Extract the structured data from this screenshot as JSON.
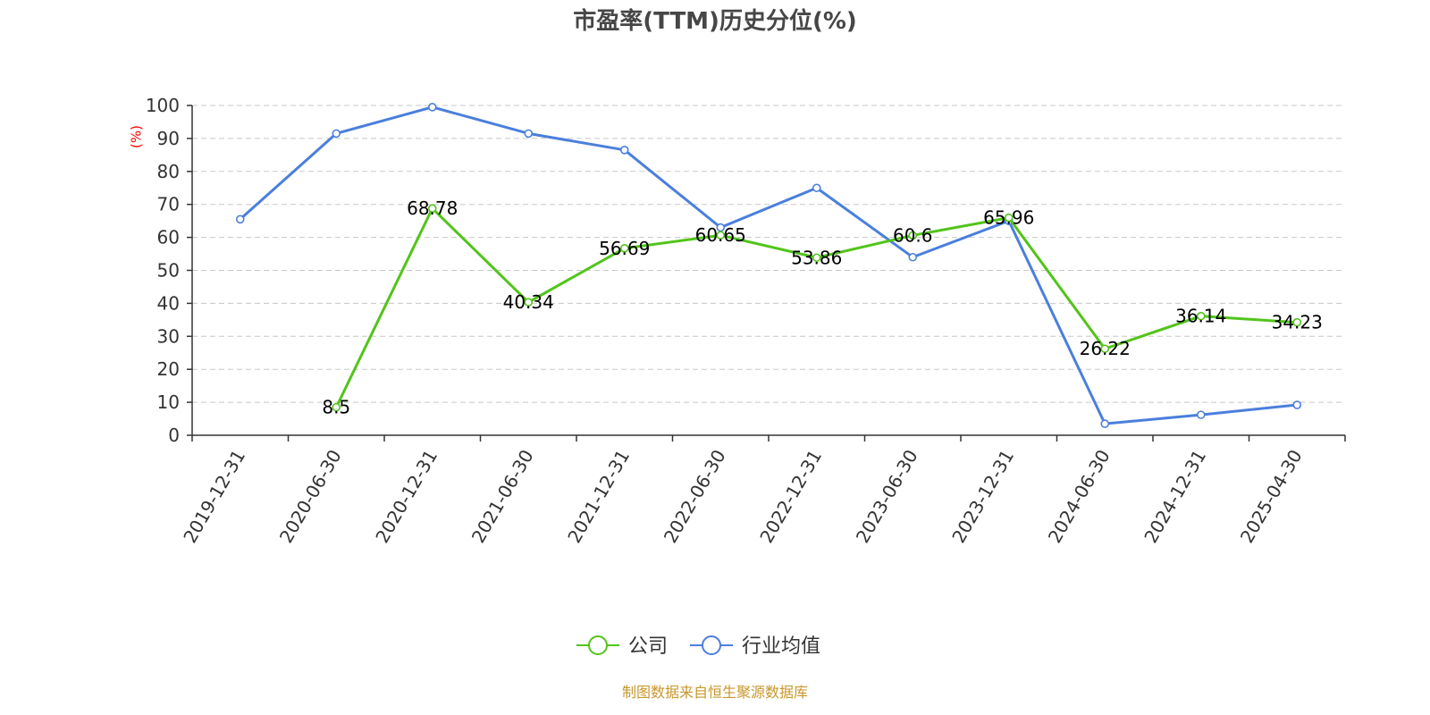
{
  "colors": {
    "company": "#52c41a",
    "industry": "#4a7fdd",
    "source": "#c8972b",
    "unit": "#ff0000"
  },
  "source_note": "制图数据来自恒生聚源数据库",
  "chart_data": {
    "type": "line",
    "title": "市盈率(TTM)历史分位(%)",
    "xlabel": "",
    "ylabel": "(%)",
    "ylim": [
      0,
      100
    ],
    "yticks": [
      0,
      10,
      20,
      30,
      40,
      50,
      60,
      70,
      80,
      90,
      100
    ],
    "grid": true,
    "legend_position": "bottom",
    "categories": [
      "2019-12-31",
      "2020-06-30",
      "2020-12-31",
      "2021-06-30",
      "2021-12-31",
      "2022-06-30",
      "2022-12-31",
      "2023-06-30",
      "2023-12-31",
      "2024-06-30",
      "2024-12-31",
      "2025-04-30"
    ],
    "series": [
      {
        "name": "公司",
        "color": "#52c41a",
        "show_labels": true,
        "values": [
          null,
          8.5,
          68.78,
          40.34,
          56.69,
          60.65,
          53.86,
          60.6,
          65.96,
          26.22,
          36.14,
          34.23
        ],
        "labels": [
          null,
          "8.5",
          "68.78",
          "40.34",
          "56.69",
          "60.65",
          "53.86",
          "60.6",
          "65.96",
          "26.22",
          "36.14",
          "34.23"
        ]
      },
      {
        "name": "行业均值",
        "color": "#4a7fdd",
        "show_labels": false,
        "values": [
          65.5,
          91.5,
          99.5,
          91.5,
          86.5,
          63,
          75,
          54,
          65,
          3.5,
          6.2,
          9.2
        ]
      }
    ]
  }
}
